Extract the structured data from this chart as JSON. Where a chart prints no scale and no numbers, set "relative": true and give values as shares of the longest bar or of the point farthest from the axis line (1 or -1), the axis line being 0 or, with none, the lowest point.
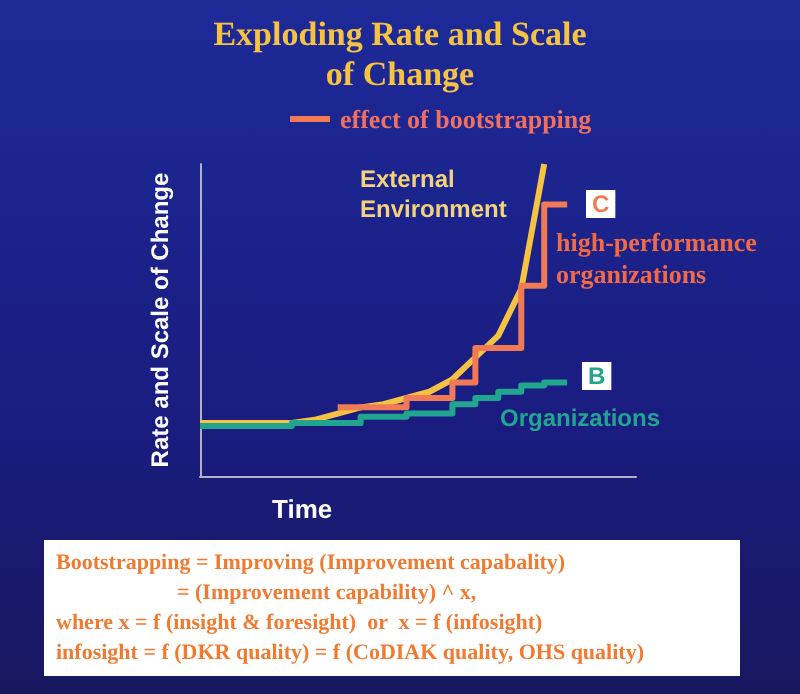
{
  "chart_data": {
    "type": "line",
    "title": "Exploding Rate and Scale\nof Change",
    "xlabel": "Time",
    "ylabel": "Rate and Scale of Change",
    "relative": true,
    "legend": "top",
    "grid": false,
    "marker": "none",
    "categories": [
      null,
      null,
      null,
      null,
      null,
      null,
      null,
      null,
      null,
      null,
      null,
      null,
      null,
      null,
      null,
      null,
      null,
      null,
      null,
      null
    ],
    "series": [
      {
        "name": "External Environment",
        "color": "#f5c242",
        "values": [
          0.17,
          0.17,
          0.17,
          0.17,
          0.17,
          0.18,
          0.2,
          0.22,
          0.23,
          0.25,
          0.27,
          0.31,
          0.38,
          0.45,
          0.6,
          1.0,
          null,
          null,
          null,
          null
        ]
      },
      {
        "type": "step",
        "name": "effect of bootstrapping",
        "color": "#f07a55",
        "values": [
          null,
          null,
          null,
          null,
          null,
          null,
          0.22,
          0.22,
          0.22,
          0.22,
          0.25,
          0.25,
          0.3,
          0.41,
          0.41,
          0.61,
          0.87,
          null,
          null,
          null
        ]
      },
      {
        "type": "step",
        "color": "#22a58f",
        "values": [
          0.16,
          0.16,
          0.16,
          0.16,
          0.16,
          0.17,
          0.17,
          0.17,
          0.19,
          0.19,
          0.2,
          0.2,
          0.23,
          0.25,
          0.27,
          0.29,
          0.3,
          null,
          null,
          null
        ]
      }
    ],
    "annotations": [
      "C",
      "high-performance organizations",
      "B",
      "Organizations",
      "Bootstrapping = Improving (Improvement capabality)\n                      = (Improvement capability) ^ x,\nwhere x = f (insight & foresight)  or  x = f (infosight)\ninfosight = f (DKR quality) = f (CoDIAK quality, OHS quality)"
    ]
  }
}
